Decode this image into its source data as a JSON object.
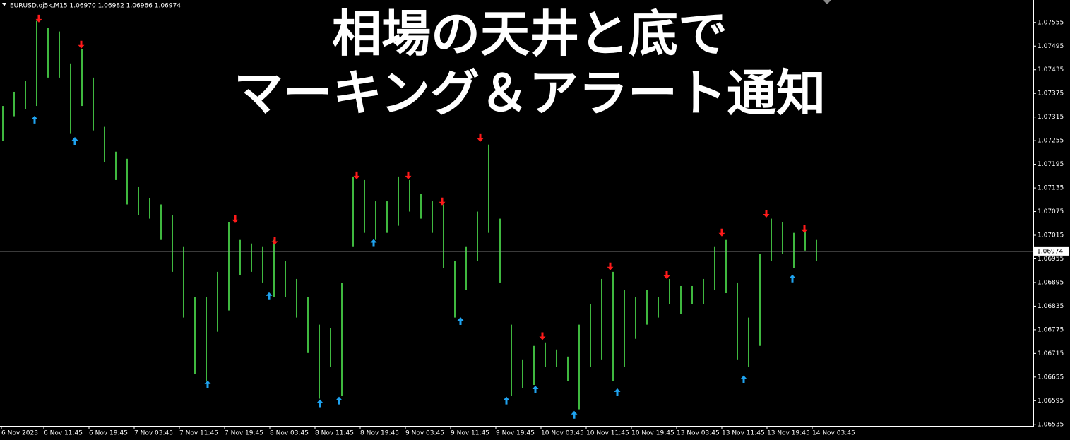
{
  "chart_data": {
    "type": "ohlc",
    "header": "EURUSD.oj5k,M15  1.06970 1.06982 1.06966 1.06974",
    "title_lines": [
      "相場の天井と底で",
      "マーキング＆アラート通知"
    ],
    "color": "#3fb83f",
    "x": [
      0,
      8,
      16,
      24,
      32,
      40,
      48,
      56,
      64,
      72,
      80,
      88,
      96,
      104,
      112,
      120,
      128,
      136,
      144,
      152,
      160,
      168,
      176,
      184,
      192,
      200,
      208,
      216,
      224,
      232,
      240,
      248,
      256,
      264,
      272,
      280,
      288,
      296,
      304,
      312,
      320,
      328,
      336,
      344,
      352,
      360,
      368,
      376,
      384,
      392,
      400,
      408,
      416,
      424,
      432,
      440,
      448,
      456,
      464,
      472,
      480,
      488,
      496,
      504,
      512,
      520,
      528,
      536,
      544,
      552,
      560,
      568,
      576
    ],
    "high": [
      1.07343,
      1.07379,
      1.07406,
      1.07559,
      1.07541,
      1.07532,
      1.07451,
      1.07487,
      1.07415,
      1.0729,
      1.07227,
      1.07209,
      1.07137,
      1.0711,
      1.07093,
      1.07066,
      1.06985,
      1.06859,
      1.06859,
      1.06922,
      1.07048,
      1.07003,
      1.06994,
      1.06985,
      1.07003,
      1.06949,
      1.06904,
      1.06859,
      1.06788,
      1.06779,
      1.06895,
      1.07164,
      1.07155,
      1.07101,
      1.07101,
      1.07164,
      1.07155,
      1.07119,
      1.07101,
      1.07093,
      1.06949,
      1.06985,
      1.07075,
      1.07245,
      1.07057,
      1.06788,
      1.06698,
      1.06734,
      1.06743,
      1.06725,
      1.06707,
      1.06788,
      1.06841,
      1.06904,
      1.06922,
      1.06877,
      1.06859,
      1.06877,
      1.06859,
      1.06904,
      1.06886,
      1.06886,
      1.06904,
      1.06985,
      1.07003,
      1.06895,
      1.06806,
      1.06967,
      1.07057,
      1.07048,
      1.07021,
      1.0703,
      1.07003
    ],
    "low": [
      1.07254,
      1.07317,
      1.07335,
      1.07343,
      1.07415,
      1.07415,
      1.07272,
      1.07343,
      1.07281,
      1.072,
      1.07155,
      1.07093,
      1.07066,
      1.07057,
      1.07003,
      1.06922,
      1.06806,
      1.06662,
      1.06644,
      1.0677,
      1.06824,
      1.06913,
      1.06922,
      1.06895,
      1.06859,
      1.06859,
      1.06806,
      1.06716,
      1.066,
      1.0668,
      1.06608,
      1.06985,
      1.07021,
      1.07003,
      1.07021,
      1.07039,
      1.07075,
      1.07057,
      1.07021,
      1.06931,
      1.06806,
      1.06877,
      1.06949,
      1.07021,
      1.06895,
      1.06608,
      1.06626,
      1.06635,
      1.0668,
      1.0668,
      1.06644,
      1.06573,
      1.0668,
      1.06698,
      1.06644,
      1.0668,
      1.06752,
      1.06788,
      1.06806,
      1.06841,
      1.06815,
      1.06841,
      1.06841,
      1.06877,
      1.06868,
      1.06698,
      1.0668,
      1.06734,
      1.06949,
      1.06967,
      1.06931,
      1.06976,
      1.06949
    ],
    "tops": {
      "color": "#ff1a1a",
      "x": [
        25.5,
        55.5,
        164.5,
        192.5,
        250.5,
        287,
        311,
        338,
        382,
        430,
        470,
        509,
        540.5,
        567.5
      ],
      "values": [
        1.07562,
        1.07496,
        1.07053,
        1.06998,
        1.07164,
        1.07164,
        1.07098,
        1.07259,
        1.06756,
        1.06933,
        1.06911,
        1.07019,
        1.07067,
        1.07028
      ]
    },
    "bottoms": {
      "color": "#1fa3f0",
      "x": [
        22.5,
        51,
        145,
        188.5,
        224.5,
        238,
        262.5,
        324,
        356.5,
        377,
        404.5,
        435,
        524.5,
        559
      ],
      "values": [
        1.07311,
        1.07257,
        1.06639,
        1.06863,
        1.06591,
        1.06598,
        1.06998,
        1.068,
        1.06598,
        1.06626,
        1.06562,
        1.06619,
        1.06652,
        1.06908
      ]
    },
    "current_price": 1.06974,
    "ylim": [
      1.06531,
      1.07612
    ],
    "yticks": [
      1.07555,
      1.07495,
      1.07435,
      1.07375,
      1.07315,
      1.07255,
      1.07195,
      1.07135,
      1.07075,
      1.07015,
      1.06955,
      1.06895,
      1.06835,
      1.06775,
      1.06715,
      1.06655,
      1.06595,
      1.06535
    ],
    "xlim": [
      -2,
      729.5
    ],
    "xticks": [
      {
        "value": -1,
        "label": "6 Nov 2023"
      },
      {
        "value": 29,
        "label": "6 Nov 11:45"
      },
      {
        "value": 61,
        "label": "6 Nov 19:45"
      },
      {
        "value": 93,
        "label": "7 Nov 03:45"
      },
      {
        "value": 125,
        "label": "7 Nov 11:45"
      },
      {
        "value": 157,
        "label": "7 Nov 19:45"
      },
      {
        "value": 189,
        "label": "8 Nov 03:45"
      },
      {
        "value": 221,
        "label": "8 Nov 11:45"
      },
      {
        "value": 253,
        "label": "8 Nov 19:45"
      },
      {
        "value": 285,
        "label": "9 Nov 03:45"
      },
      {
        "value": 317,
        "label": "9 Nov 11:45"
      },
      {
        "value": 349,
        "label": "9 Nov 19:45"
      },
      {
        "value": 381,
        "label": "10 Nov 03:45"
      },
      {
        "value": 413,
        "label": "10 Nov 11:45"
      },
      {
        "value": 445,
        "label": "10 Nov 19:45"
      },
      {
        "value": 477,
        "label": "13 Nov 03:45"
      },
      {
        "value": 509,
        "label": "13 Nov 11:45"
      },
      {
        "value": 541,
        "label": "13 Nov 19:45"
      },
      {
        "value": 573,
        "label": "14 Nov 03:45"
      }
    ]
  }
}
